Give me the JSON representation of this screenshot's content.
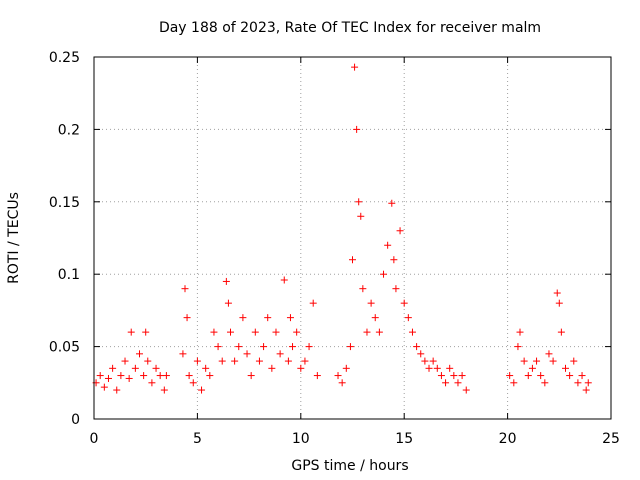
{
  "chart_data": {
    "type": "scatter",
    "title": "Day 188 of 2023, Rate Of TEC Index for receiver malm",
    "xlabel": "GPS time / hours",
    "ylabel": "ROTI / TECUs",
    "xlim": [
      0,
      25
    ],
    "ylim": [
      0,
      0.25
    ],
    "xticks": [
      0,
      5,
      10,
      15,
      20,
      25
    ],
    "xtick_labels": [
      "0",
      "5",
      "10",
      "15",
      "20",
      "25"
    ],
    "yticks": [
      0,
      0.05,
      0.1,
      0.15,
      0.2,
      0.25
    ],
    "ytick_labels": [
      "0",
      "0.05",
      "0.1",
      "0.15",
      "0.2",
      "0.25"
    ],
    "grid": true,
    "marker": "+",
    "color": "#ff0000",
    "series": [
      {
        "x": [
          0.1,
          0.3,
          0.5,
          0.7,
          0.9,
          1.1,
          1.3,
          1.5,
          1.7,
          1.8,
          2.0,
          2.2,
          2.4,
          2.5,
          2.6,
          2.8,
          3.0,
          3.2,
          3.4,
          3.5,
          4.3,
          4.4,
          4.5,
          4.6,
          4.8,
          5.0,
          5.2,
          5.4,
          5.6,
          5.8,
          6.0,
          6.2,
          6.4,
          6.5,
          6.6,
          6.8,
          7.0,
          7.2,
          7.4,
          7.6,
          7.8,
          8.0,
          8.2,
          8.4,
          8.6,
          8.8,
          9.0,
          9.2,
          9.4,
          9.5,
          9.6,
          9.8,
          10.0,
          10.2,
          10.4,
          10.6,
          10.8,
          11.8,
          12.0,
          12.2,
          12.4,
          12.5,
          12.6,
          12.7,
          12.8,
          12.9,
          13.0,
          13.2,
          13.4,
          13.6,
          13.8,
          14.0,
          14.2,
          14.4,
          14.5,
          14.6,
          14.8,
          15.0,
          15.2,
          15.4,
          15.6,
          15.8,
          16.0,
          16.2,
          16.4,
          16.6,
          16.8,
          17.0,
          17.2,
          17.4,
          17.6,
          17.8,
          18.0,
          20.1,
          20.3,
          20.5,
          20.6,
          20.8,
          21.0,
          21.2,
          21.4,
          21.6,
          21.8,
          22.0,
          22.2,
          22.4,
          22.5,
          22.6,
          22.8,
          23.0,
          23.2,
          23.4,
          23.6,
          23.8,
          23.9
        ],
        "y": [
          0.025,
          0.03,
          0.022,
          0.028,
          0.035,
          0.02,
          0.03,
          0.04,
          0.028,
          0.06,
          0.035,
          0.045,
          0.03,
          0.06,
          0.04,
          0.025,
          0.035,
          0.03,
          0.02,
          0.03,
          0.045,
          0.09,
          0.07,
          0.03,
          0.025,
          0.04,
          0.02,
          0.035,
          0.03,
          0.06,
          0.05,
          0.04,
          0.095,
          0.08,
          0.06,
          0.04,
          0.05,
          0.07,
          0.045,
          0.03,
          0.06,
          0.04,
          0.05,
          0.07,
          0.035,
          0.06,
          0.045,
          0.096,
          0.04,
          0.07,
          0.05,
          0.06,
          0.035,
          0.04,
          0.05,
          0.08,
          0.03,
          0.03,
          0.025,
          0.035,
          0.05,
          0.11,
          0.243,
          0.2,
          0.15,
          0.14,
          0.09,
          0.06,
          0.08,
          0.07,
          0.06,
          0.1,
          0.12,
          0.149,
          0.11,
          0.09,
          0.13,
          0.08,
          0.07,
          0.06,
          0.05,
          0.045,
          0.04,
          0.035,
          0.04,
          0.035,
          0.03,
          0.025,
          0.035,
          0.03,
          0.025,
          0.03,
          0.02,
          0.03,
          0.025,
          0.05,
          0.06,
          0.04,
          0.03,
          0.035,
          0.04,
          0.03,
          0.025,
          0.045,
          0.04,
          0.087,
          0.08,
          0.06,
          0.035,
          0.03,
          0.04,
          0.025,
          0.03,
          0.02,
          0.025
        ]
      }
    ]
  }
}
